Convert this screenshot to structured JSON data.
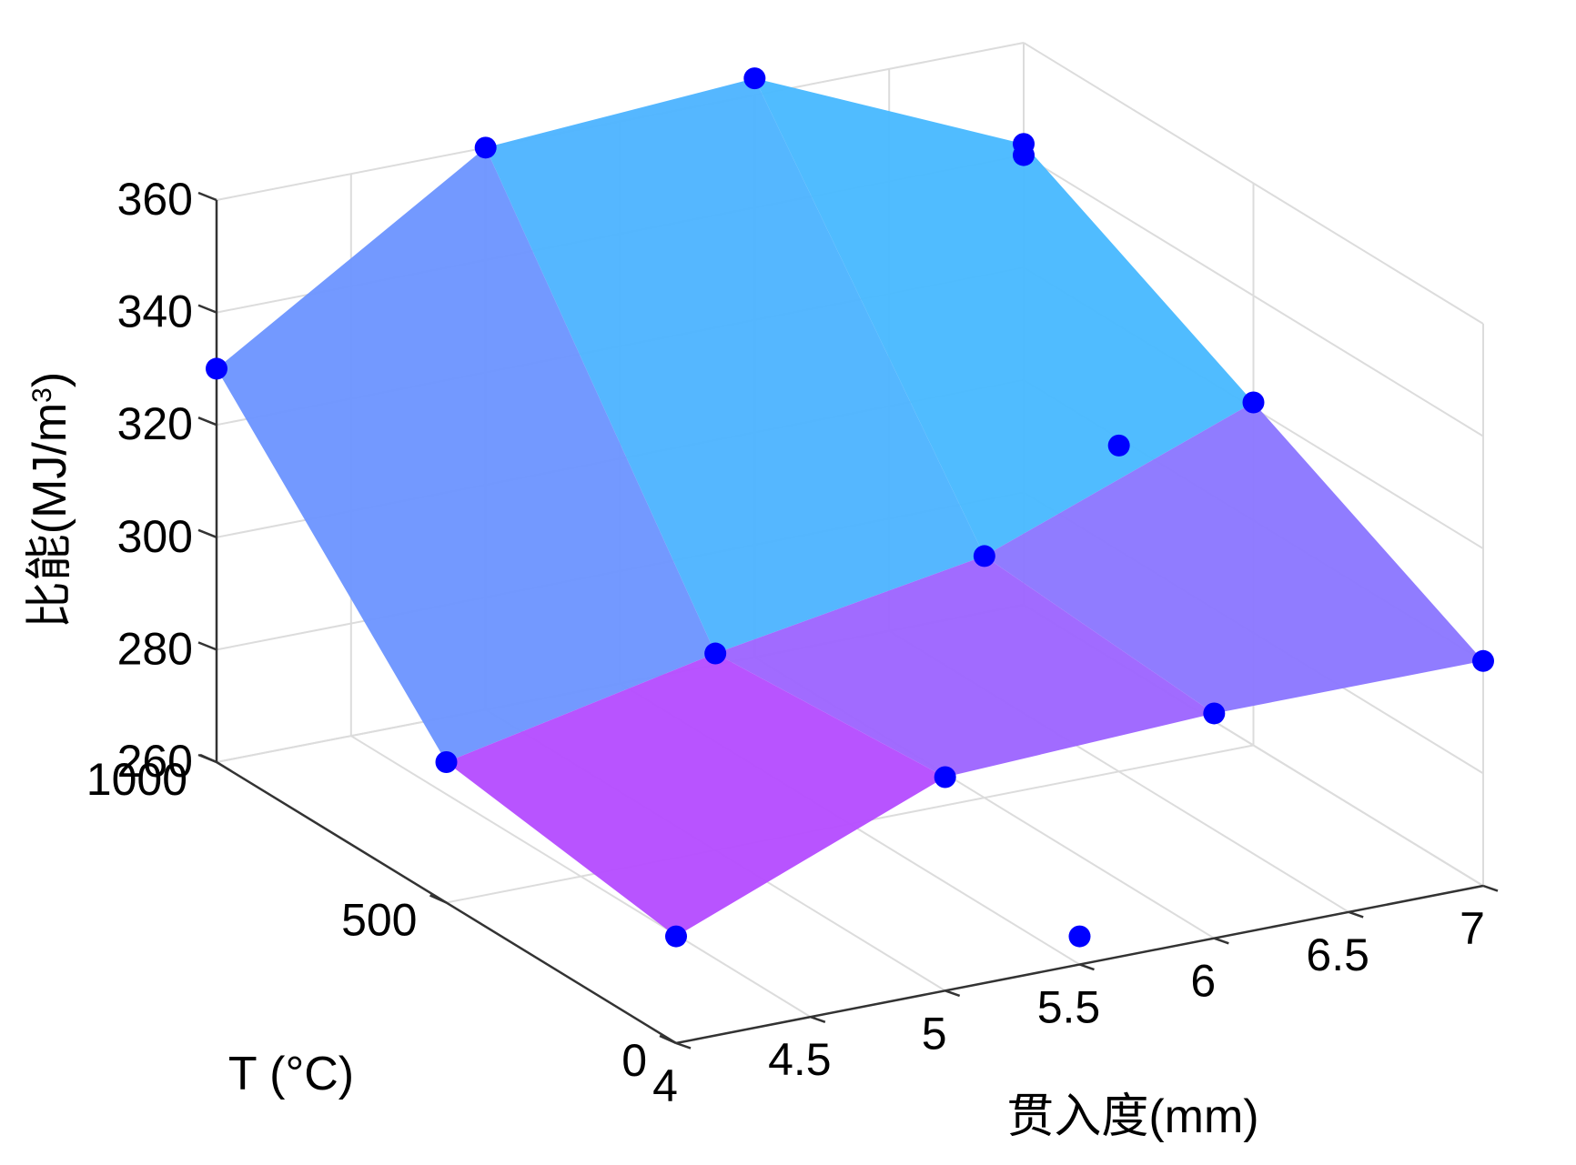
{
  "chart_data": {
    "type": "surface3d",
    "title": "",
    "xlabel": "贯入度(mm)",
    "ylabel": "T (°C)",
    "zlabel": "比能(MJ/m",
    "zlabel_sup": "3",
    "zlabel_close": ")",
    "xlim": [
      4,
      7
    ],
    "ylim": [
      0,
      1000
    ],
    "zlim": [
      260,
      360
    ],
    "x_ticks": [
      "4",
      "4.5",
      "5",
      "5.5",
      "6",
      "6.5",
      "7"
    ],
    "y_ticks": [
      "0",
      "500",
      "1000"
    ],
    "z_ticks": [
      "260",
      "280",
      "300",
      "320",
      "340",
      "360"
    ],
    "grid": true,
    "colormap": [
      "#00ffff",
      "#ff00ff"
    ],
    "marker_color": "#0000ff",
    "points": [
      {
        "x": 4,
        "y": 0,
        "z": 279
      },
      {
        "x": 4,
        "y": 500,
        "z": 285
      },
      {
        "x": 4,
        "y": 1000,
        "z": 330
      },
      {
        "x": 5,
        "y": 0,
        "z": 298
      },
      {
        "x": 5,
        "y": 500,
        "z": 295
      },
      {
        "x": 5,
        "y": 1000,
        "z": 360
      },
      {
        "x": 6,
        "y": 0,
        "z": 300
      },
      {
        "x": 6,
        "y": 500,
        "z": 303
      },
      {
        "x": 6,
        "y": 1000,
        "z": 363
      },
      {
        "x": 7,
        "y": 0,
        "z": 300
      },
      {
        "x": 7,
        "y": 500,
        "z": 321
      },
      {
        "x": 7,
        "y": 1000,
        "z": 342
      },
      {
        "x": 5.5,
        "y": 0,
        "z": 265
      },
      {
        "x": 6.5,
        "y": 500,
        "z": 318
      },
      {
        "x": 7,
        "y": 1000,
        "z": 340
      }
    ]
  }
}
